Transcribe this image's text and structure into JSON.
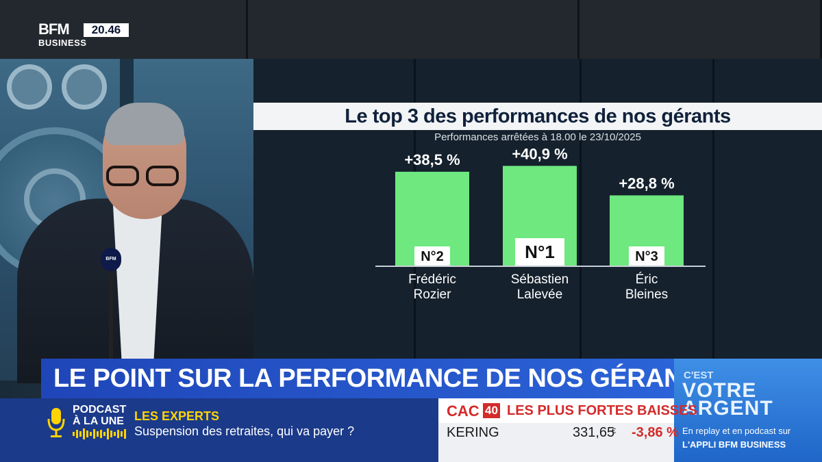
{
  "channel": {
    "logo": "BFM",
    "sublogo": "BUSINESS",
    "clock": "20.46"
  },
  "chart_data": {
    "type": "bar",
    "title": "Le top 3 des performances de nos gérants",
    "subtitle": "Performances arrêtées à 18.00 le 23/10/2025",
    "categories": [
      "Frédéric Rozier",
      "Sébastien Lalevée",
      "Éric Bleines"
    ],
    "category_lines": [
      [
        "Frédéric",
        "Rozier"
      ],
      [
        "Sébastien",
        "Lalevée"
      ],
      [
        "Éric",
        "Bleines"
      ]
    ],
    "values": [
      38.5,
      40.9,
      28.8
    ],
    "value_labels": [
      "+38,5 %",
      "+40,9 %",
      "+28,8 %"
    ],
    "ranks": [
      "N°2",
      "N°1",
      "N°3"
    ],
    "bar_color": "#6ee87f",
    "ylim": [
      0,
      41
    ],
    "xlabel": "",
    "ylabel": "",
    "grid": false
  },
  "headline": "LE POINT SUR LA PERFORMANCE DE NOS GÉRANTS",
  "promo": {
    "prefix": "C'EST",
    "line1": "VOTRE",
    "line2": "ARGENT",
    "replay": "En replay et en podcast sur",
    "appli": "L'APPLI BFM BUSINESS"
  },
  "podcast": {
    "line1": "PODCAST",
    "line2": "À LA UNE",
    "icon": "microphone-icon"
  },
  "experts": {
    "title": "LES EXPERTS",
    "subtitle": "Suspension des retraites, qui va payer ?"
  },
  "market": {
    "index_label": "CAC",
    "index_number": "40",
    "title": "LES PLUS FORTES BAISSES",
    "stock": "KERING",
    "price": "331,65",
    "currency": "€",
    "change": "-3,86 %",
    "change_color": "#d42a2a"
  }
}
